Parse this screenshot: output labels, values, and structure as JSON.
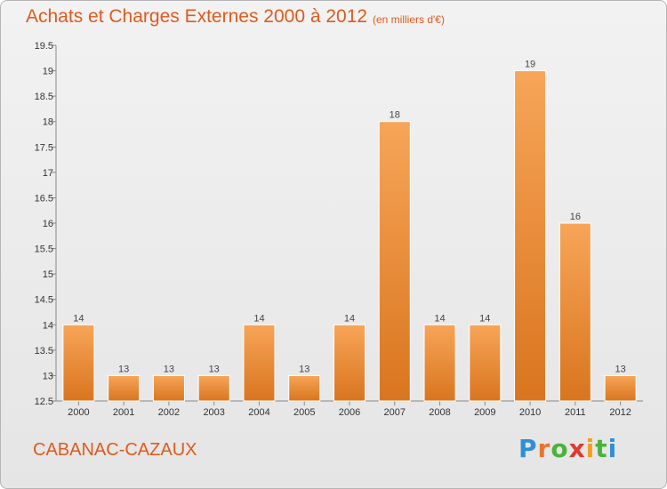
{
  "header": {
    "title": "Achats et Charges Externes 2000 à 2012",
    "subtitle": "(en milliers d'€)"
  },
  "footer": {
    "commune": "CABANAC-CAZAUX",
    "brand": {
      "letters": [
        "P",
        "r",
        "o",
        "x",
        "i",
        "t",
        "i"
      ],
      "colors": [
        "#2f8fd6",
        "#e8752a",
        "#49b33b",
        "#e23a2f",
        "#f0a020",
        "#49b33b",
        "#2f8fd6"
      ]
    }
  },
  "chart_data": {
    "type": "bar",
    "categories": [
      "2000",
      "2001",
      "2002",
      "2003",
      "2004",
      "2005",
      "2006",
      "2007",
      "2008",
      "2009",
      "2010",
      "2011",
      "2012"
    ],
    "values": [
      14,
      13,
      13,
      13,
      14,
      13,
      14,
      18,
      14,
      14,
      19,
      16,
      13
    ],
    "value_labels": [
      "14",
      "13",
      "13",
      "13",
      "14",
      "13",
      "14",
      "18",
      "14",
      "14",
      "19",
      "16",
      "13"
    ],
    "title": "Achats et Charges Externes 2000 à 2012",
    "ylim": [
      12.5,
      19.5
    ],
    "yticks": [
      12.5,
      13,
      13.5,
      14,
      14.5,
      15,
      15.5,
      16,
      16.5,
      17,
      17.5,
      18,
      18.5,
      19,
      19.5
    ],
    "ytick_labels": [
      "12.5",
      "13",
      "13.5",
      "14",
      "14.5",
      "15",
      "15.5",
      "16",
      "16.5",
      "17",
      "17.5",
      "18",
      "18.5",
      "19",
      "19.5"
    ],
    "grid": false,
    "colors": {
      "bar_light": "#f7a558",
      "bar_dark": "#d9751f",
      "axis": "#888888"
    }
  }
}
